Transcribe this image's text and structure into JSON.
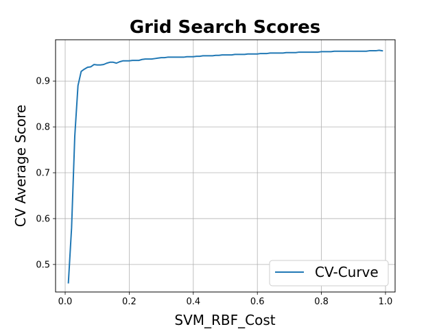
{
  "chart_data": {
    "type": "line",
    "title": "Grid Search Scores",
    "xlabel": "SVM_RBF_Cost",
    "ylabel": "CV Average Score",
    "xlim": [
      -0.03,
      1.03
    ],
    "ylim": [
      0.44,
      0.99
    ],
    "xticks": [
      0.0,
      0.2,
      0.4,
      0.6,
      0.8,
      1.0
    ],
    "xtick_labels": [
      "0.0",
      "0.2",
      "0.4",
      "0.6",
      "0.8",
      "1.0"
    ],
    "yticks": [
      0.5,
      0.6,
      0.7,
      0.8,
      0.9
    ],
    "ytick_labels": [
      "0.5",
      "0.6",
      "0.7",
      "0.8",
      "0.9"
    ],
    "grid": true,
    "legend_position": "lower-right",
    "series": [
      {
        "name": "CV-Curve",
        "color": "#1f77b4",
        "x": [
          0.01,
          0.02,
          0.03,
          0.04,
          0.05,
          0.06,
          0.07,
          0.08,
          0.09,
          0.1,
          0.11,
          0.12,
          0.13,
          0.14,
          0.15,
          0.16,
          0.17,
          0.18,
          0.19,
          0.2,
          0.21,
          0.22,
          0.23,
          0.24,
          0.25,
          0.26,
          0.27,
          0.28,
          0.29,
          0.3,
          0.31,
          0.32,
          0.33,
          0.34,
          0.35,
          0.36,
          0.37,
          0.38,
          0.39,
          0.4,
          0.41,
          0.42,
          0.43,
          0.44,
          0.45,
          0.46,
          0.47,
          0.48,
          0.49,
          0.5,
          0.51,
          0.52,
          0.53,
          0.54,
          0.55,
          0.56,
          0.57,
          0.58,
          0.59,
          0.6,
          0.61,
          0.62,
          0.63,
          0.64,
          0.65,
          0.66,
          0.67,
          0.68,
          0.69,
          0.7,
          0.71,
          0.72,
          0.73,
          0.74,
          0.75,
          0.76,
          0.77,
          0.78,
          0.79,
          0.8,
          0.81,
          0.82,
          0.83,
          0.84,
          0.85,
          0.86,
          0.87,
          0.88,
          0.89,
          0.9,
          0.91,
          0.92,
          0.93,
          0.94,
          0.95,
          0.96,
          0.97,
          0.98,
          0.99
        ],
        "y": [
          0.46,
          0.58,
          0.78,
          0.89,
          0.921,
          0.926,
          0.93,
          0.931,
          0.936,
          0.935,
          0.935,
          0.936,
          0.939,
          0.941,
          0.941,
          0.939,
          0.942,
          0.944,
          0.944,
          0.944,
          0.945,
          0.945,
          0.945,
          0.947,
          0.948,
          0.948,
          0.948,
          0.949,
          0.95,
          0.951,
          0.951,
          0.952,
          0.952,
          0.952,
          0.952,
          0.952,
          0.952,
          0.953,
          0.953,
          0.953,
          0.954,
          0.954,
          0.955,
          0.955,
          0.955,
          0.955,
          0.956,
          0.956,
          0.957,
          0.957,
          0.957,
          0.957,
          0.958,
          0.958,
          0.958,
          0.958,
          0.959,
          0.959,
          0.959,
          0.959,
          0.96,
          0.96,
          0.96,
          0.961,
          0.961,
          0.961,
          0.961,
          0.961,
          0.962,
          0.962,
          0.962,
          0.962,
          0.963,
          0.963,
          0.963,
          0.963,
          0.963,
          0.963,
          0.963,
          0.964,
          0.964,
          0.964,
          0.964,
          0.965,
          0.965,
          0.965,
          0.965,
          0.965,
          0.965,
          0.965,
          0.965,
          0.965,
          0.965,
          0.965,
          0.966,
          0.966,
          0.966,
          0.967,
          0.966
        ]
      }
    ]
  }
}
